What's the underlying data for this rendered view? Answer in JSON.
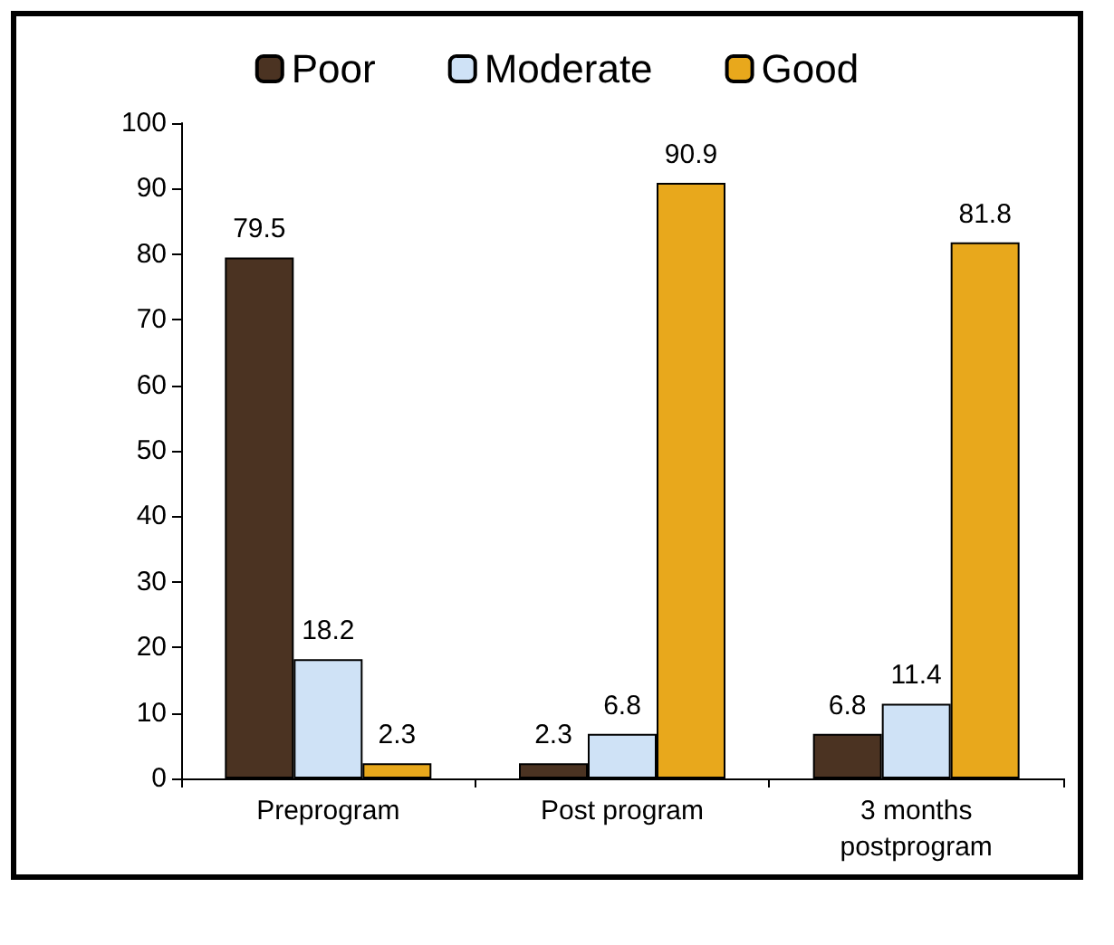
{
  "chart_data": {
    "type": "bar",
    "categories": [
      "Preprogram",
      "Post program",
      "3 months\npostprogram"
    ],
    "series": [
      {
        "name": "Poor",
        "color": "#4b3322",
        "values": [
          79.5,
          2.3,
          6.8
        ]
      },
      {
        "name": "Moderate",
        "color": "#cfe2f6",
        "values": [
          18.2,
          6.8,
          11.4
        ]
      },
      {
        "name": "Good",
        "color": "#e8a81c",
        "values": [
          2.3,
          90.9,
          81.8
        ]
      }
    ],
    "ylim": [
      0,
      100
    ],
    "yticks": [
      0,
      10,
      20,
      30,
      40,
      50,
      60,
      70,
      80,
      90,
      100
    ],
    "grid": false,
    "legend": "top",
    "data_labels": true
  }
}
